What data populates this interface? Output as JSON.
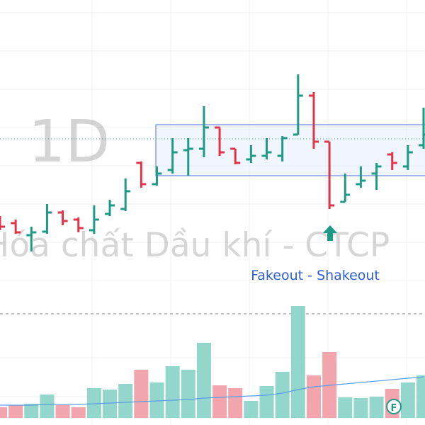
{
  "chart_data": {
    "type": "ohlc",
    "watermark_interval": "1D",
    "watermark_name": "Hóa chất Dầu khí - CTCP",
    "annotation": "Fakeout - Shakeout",
    "badge": "F",
    "up_color": "#1f9a87",
    "down_color": "#e0344a",
    "volume_up_color": "#93d6cb",
    "volume_down_color": "#f3a5ae",
    "ma_color": "#5a9ee8",
    "ylim": [
      16,
      60
    ],
    "y2lim": [
      0,
      160
    ],
    "open": [
      28.8,
      28.5,
      26.8,
      27.3,
      30.0,
      29.0,
      27.5,
      29.8,
      30.5,
      37.0,
      34.0,
      36.0,
      38.8,
      39.0,
      42.0,
      39.0,
      37.5,
      38.0,
      38.0,
      41.0,
      46.5,
      40.0,
      31.5,
      34.0,
      35.5,
      38.2,
      36.5,
      39.5
    ],
    "high": [
      29.5,
      29.0,
      28.0,
      31.2,
      30.3,
      29.3,
      31.0,
      31.8,
      34.8,
      37.2,
      36.5,
      40.5,
      40.5,
      45.0,
      42.0,
      39.0,
      39.5,
      40.5,
      40.8,
      49.5,
      47.0,
      40.0,
      35.5,
      36.5,
      37.0,
      38.5,
      39.5,
      44.8
    ],
    "low": [
      27.5,
      27.0,
      24.5,
      27.0,
      28.2,
      27.2,
      27.0,
      29.5,
      30.2,
      33.5,
      33.8,
      35.5,
      35.2,
      37.8,
      38.0,
      36.8,
      37.0,
      37.5,
      37.2,
      41.0,
      39.0,
      30.5,
      31.5,
      33.5,
      33.2,
      36.0,
      36.0,
      39.0
    ],
    "close": [
      28.0,
      27.2,
      27.2,
      30.0,
      28.8,
      27.8,
      29.0,
      31.0,
      33.0,
      34.0,
      35.5,
      38.5,
      39.0,
      42.0,
      38.5,
      37.0,
      38.0,
      38.5,
      40.5,
      46.5,
      40.0,
      31.0,
      32.5,
      34.5,
      36.5,
      37.0,
      38.5,
      41.0
    ],
    "volume": [
      15,
      18,
      20,
      33,
      18,
      15,
      42,
      40,
      48,
      68,
      50,
      73,
      68,
      106,
      46,
      42,
      24,
      45,
      65,
      158,
      60,
      93,
      29,
      28,
      30,
      41,
      50,
      60
    ],
    "volume_ma": [
      18,
      18,
      18,
      19,
      19,
      19,
      20,
      21,
      22,
      23,
      24,
      25,
      26,
      28,
      29,
      30,
      31,
      32,
      35,
      40,
      44,
      46,
      48,
      50,
      52,
      54,
      56,
      58
    ]
  }
}
